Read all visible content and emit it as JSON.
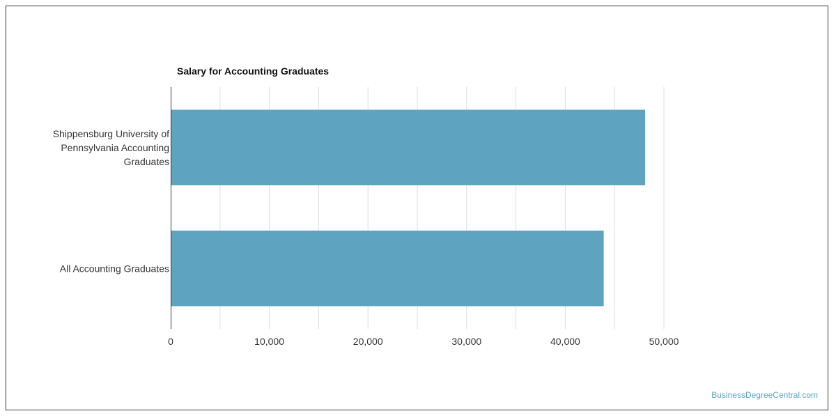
{
  "watermark": "BusinessDegreeCentral.com",
  "chart_data": {
    "type": "bar",
    "orientation": "horizontal",
    "title": "Salary for Accounting Graduates",
    "xlabel": "",
    "ylabel": "",
    "categories": [
      "Shippensburg University of Pennsylvania Accounting Graduates",
      "All Accounting Graduates"
    ],
    "category_lines": [
      [
        "Shippensburg University of",
        "Pennsylvania Accounting",
        "Graduates"
      ],
      [
        "All Accounting Graduates"
      ]
    ],
    "values": [
      48100,
      43900
    ],
    "xlim": [
      0,
      50000
    ],
    "x_ticks": [
      0,
      10000,
      20000,
      30000,
      40000,
      50000
    ],
    "x_tick_labels": [
      "0",
      "10,000",
      "20,000",
      "30,000",
      "40,000",
      "50,000"
    ],
    "grid": true,
    "bar_color": "#5ea3bf",
    "grid_color": "#dddddd",
    "axis_color": "#333333"
  }
}
